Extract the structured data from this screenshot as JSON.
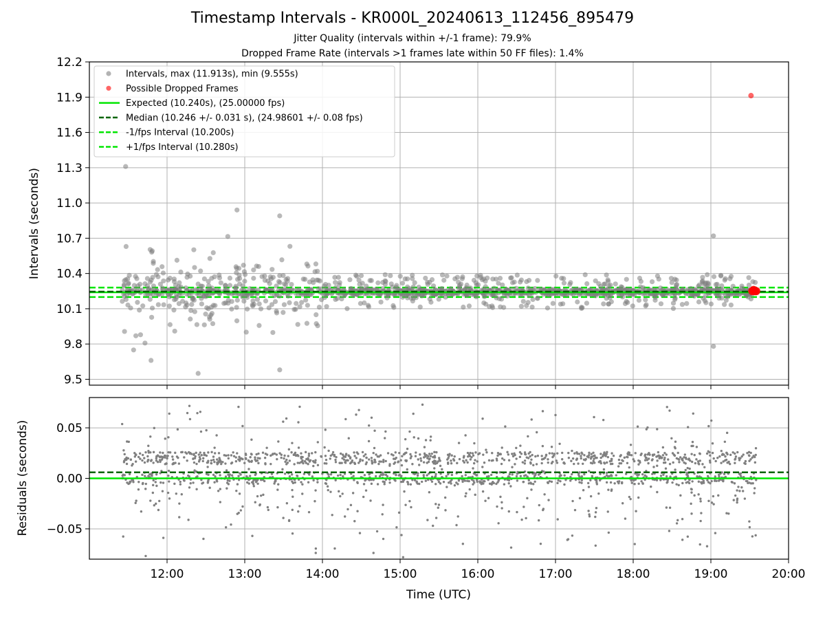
{
  "title": "Timestamp Intervals - KR000L_20240613_112456_895479",
  "subtitle1": "Jitter Quality (intervals within +/-1 frame): 79.9%",
  "subtitle2": "Dropped Frame Rate (intervals >1 frames late within 50 FF files): 1.4%",
  "colors": {
    "points": "#808080",
    "dropped": "#ff0000",
    "expected": "#00e600",
    "median": "#006400",
    "interval_band": "#00e600",
    "grid": "#b0b0b0"
  },
  "chart_data": [
    {
      "type": "scatter",
      "ylabel": "Intervals (seconds)",
      "ylim": [
        9.45,
        12.2
      ],
      "yticks": [
        "9.5",
        "9.8",
        "10.1",
        "10.4",
        "10.7",
        "11.0",
        "11.3",
        "11.6",
        "11.9",
        "12.2"
      ],
      "xlim": [
        "11:00",
        "20:00"
      ],
      "grid": true,
      "legend_position": "top-left",
      "legend": [
        {
          "label": "Intervals, max (11.913s), min (9.555s)",
          "style": "gray-dot"
        },
        {
          "label": "Possible Dropped Frames",
          "style": "red-dot"
        },
        {
          "label": "Expected (10.240s), (25.00000 fps)",
          "style": "green-solid"
        },
        {
          "label": "Median (10.246 +/- 0.031 s), (24.98601 +/- 0.08 fps)",
          "style": "darkgreen-dashed"
        },
        {
          "label": "-1/fps Interval (10.200s)",
          "style": "green-dashed"
        },
        {
          "label": "+1/fps Interval (10.280s)",
          "style": "green-dashed"
        }
      ],
      "expected": 10.24,
      "median": 10.246,
      "minus_interval": 10.2,
      "plus_interval": 10.28,
      "time_range": [
        "11:25",
        "19:35"
      ],
      "max_interval": 11.913,
      "min_interval": 9.555,
      "notable_points": [
        {
          "x": "11:28",
          "y": 11.31
        },
        {
          "x": "12:54",
          "y": 10.94
        },
        {
          "x": "13:27",
          "y": 10.89
        },
        {
          "x": "19:02",
          "y": 10.72
        },
        {
          "x": "19:02",
          "y": 9.78
        },
        {
          "x": "12:24",
          "y": 9.55
        },
        {
          "x": "13:27",
          "y": 9.58
        }
      ],
      "dropped_points": [
        {
          "x": "19:31",
          "y": 11.913
        },
        {
          "x": "19:32",
          "y": 10.25
        },
        {
          "x": "19:33",
          "y": 10.26
        },
        {
          "x": "19:34",
          "y": 10.25
        },
        {
          "x": "19:35",
          "y": 10.25
        }
      ]
    },
    {
      "type": "scatter",
      "ylabel": "Residuals (seconds)",
      "xlabel": "Time (UTC)",
      "ylim": [
        -0.08,
        0.08
      ],
      "yticks": [
        "0.05",
        "0.00",
        "−0.05"
      ],
      "xticks": [
        "12:00",
        "13:00",
        "14:00",
        "15:00",
        "16:00",
        "17:00",
        "18:00",
        "19:00",
        "20:00"
      ],
      "xlim": [
        "11:00",
        "20:00"
      ],
      "grid": true,
      "zero_line": 0.0,
      "median_offset": 0.006,
      "time_range": [
        "11:25",
        "19:35"
      ]
    }
  ]
}
